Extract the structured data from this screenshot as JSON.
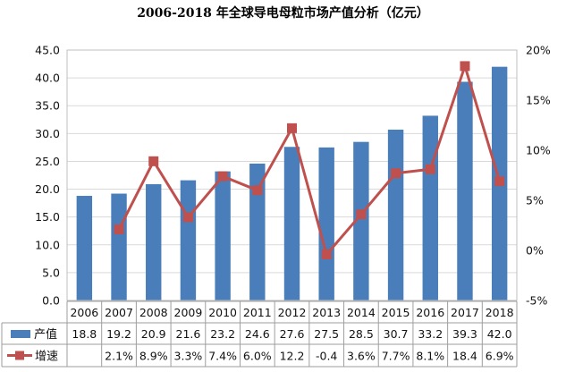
{
  "chart_data": {
    "type": "bar+line",
    "title": "2006-2018 年全球导电母粒市场产值分析（亿元）",
    "categories": [
      "2006",
      "2007",
      "2008",
      "2009",
      "2010",
      "2011",
      "2012",
      "2013",
      "2014",
      "2015",
      "2016",
      "2017",
      "2018"
    ],
    "series": [
      {
        "name": "产值",
        "type": "bar",
        "axis": "left",
        "color": "#4A7EBB",
        "values": [
          18.8,
          19.2,
          20.9,
          21.6,
          23.2,
          24.6,
          27.6,
          27.5,
          28.5,
          30.7,
          33.2,
          39.3,
          42.0
        ],
        "labels": [
          "18.8",
          "19.2",
          "20.9",
          "21.6",
          "23.2",
          "24.6",
          "27.6",
          "27.5",
          "28.5",
          "30.7",
          "33.2",
          "39.3",
          "42.0"
        ]
      },
      {
        "name": "增速",
        "type": "line",
        "axis": "right",
        "color": "#C0504D",
        "values": [
          null,
          2.1,
          8.9,
          3.3,
          7.4,
          6.0,
          12.2,
          -0.4,
          3.6,
          7.7,
          8.1,
          18.4,
          6.9
        ],
        "labels": [
          "",
          "2.1%",
          "8.9%",
          "3.3%",
          "7.4%",
          "6.0%",
          "12.2",
          "-0.4",
          "3.6%",
          "7.7%",
          "8.1%",
          "18.4",
          "6.9%"
        ]
      }
    ],
    "y_left": {
      "min": 0,
      "max": 45,
      "ticks": [
        "0.0",
        "5.0",
        "10.0",
        "15.0",
        "20.0",
        "25.0",
        "30.0",
        "35.0",
        "40.0",
        "45.0"
      ]
    },
    "y_right": {
      "min": -5,
      "max": 20,
      "ticks": [
        "-5%",
        "0%",
        "5%",
        "10%",
        "15%",
        "20%"
      ]
    },
    "grid": true,
    "legend": "table-bottom"
  }
}
